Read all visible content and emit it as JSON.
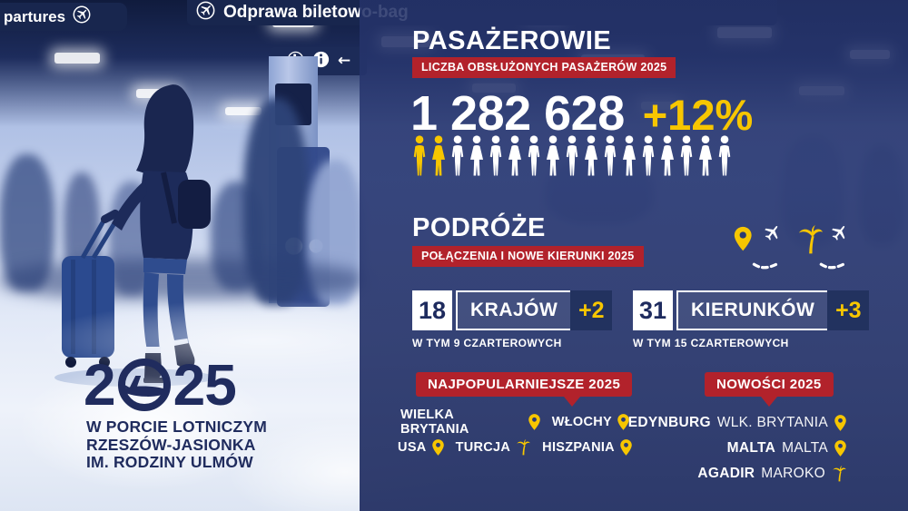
{
  "colors": {
    "banner_red": "#B2222B",
    "accent_yellow": "#F7C600",
    "panel_navy": "#283A74",
    "logo_navy": "#202C5E",
    "pictogram_white": "#FFFFFF"
  },
  "left": {
    "sign_departures": "partures",
    "sign_checkin": "Odprawa biletowo-bag",
    "logo_year": "2025",
    "logo_prefix": "2",
    "logo_suffix": "25",
    "footer_lines": [
      "W PORCIE LOTNICZYM",
      "RZESZÓW-JASIONKA",
      "IM. RODZINY ULMÓW"
    ]
  },
  "passengers": {
    "title": "PASAŻEROWIE",
    "banner": "LICZBA OBSŁUŻONYCH PASAŻERÓW 2025",
    "count": "1 282 628",
    "growth": "+12%",
    "icons_total": 17,
    "icons_highlighted": 2
  },
  "travel": {
    "title": "PODRÓŻE",
    "banner": "POŁĄCZENIA I NOWE KIERUNKI 2025",
    "stats": [
      {
        "value": "18",
        "label": "KRAJÓW",
        "delta": "+2",
        "note": "W TYM 9 CZARTEROWYCH"
      },
      {
        "value": "31",
        "label": "KIERUNKÓW",
        "delta": "+3",
        "note": "W TYM 15 CZARTEROWYCH"
      }
    ]
  },
  "popular": {
    "badge": "NAJPOPULARNIEJSZE 2025",
    "rows": [
      [
        {
          "name": "WIELKA BRYTANIA",
          "icon": "pin"
        },
        {
          "name": "WŁOCHY",
          "icon": "pin"
        }
      ],
      [
        {
          "name": "USA",
          "icon": "pin"
        },
        {
          "name": "TURCJA",
          "icon": "palm"
        },
        {
          "name": "HISZPANIA",
          "icon": "pin"
        }
      ]
    ]
  },
  "news": {
    "badge": "NOWOŚCI 2025",
    "rows": [
      {
        "city": "EDYNBURG",
        "country": "WLK. BRYTANIA",
        "icon": "pin"
      },
      {
        "city": "MALTA",
        "country": "MALTA",
        "icon": "pin"
      },
      {
        "city": "AGADIR",
        "country": "MAROKO",
        "icon": "palm"
      }
    ]
  },
  "chart_data": {
    "type": "table",
    "title": "2025 w Porcie Lotniczym Rzeszów-Jasionka im. Rodziny Ulmów",
    "rows": [
      {
        "metric": "Liczba obsłużonych pasażerów 2025",
        "value": 1282628,
        "change_pct": 12
      },
      {
        "metric": "Kraje",
        "value": 18,
        "change": 2,
        "note": "w tym 9 czarterowych"
      },
      {
        "metric": "Kierunki",
        "value": 31,
        "change": 3,
        "note": "w tym 15 czarterowych"
      }
    ],
    "pictograph": {
      "total_icons": 17,
      "highlighted_icons": 2,
      "meaning": "+12% wzrost pasażerów"
    },
    "popular_2025": [
      "Wielka Brytania",
      "Włochy",
      "USA",
      "Turcja",
      "Hiszpania"
    ],
    "new_2025": [
      {
        "city": "Edynburg",
        "country": "Wlk. Brytania"
      },
      {
        "city": "Malta",
        "country": "Malta"
      },
      {
        "city": "Agadir",
        "country": "Maroko"
      }
    ]
  }
}
